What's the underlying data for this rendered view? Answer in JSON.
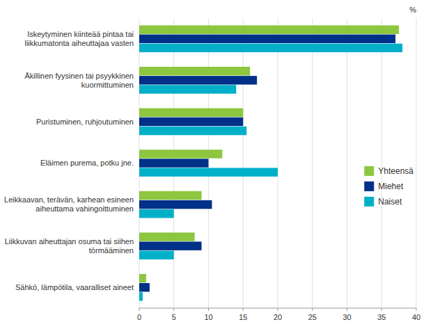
{
  "chart_data": {
    "type": "bar",
    "orientation": "horizontal",
    "categories": [
      "Iskeytyminen kiinteää pintaa tai\nliikkumatonta aiheuttajaa vasten",
      "Äkillinen fyysinen tai psyykkinen\nkuormittuminen",
      "Puristuminen, ruhjoutuminen",
      "Eläimen purema, potku jne.",
      "Leikkaavan, terävän, karhean esineen\naiheuttama vahingoittuminen",
      "Liikkuvan aiheuttajan osuma tai siihen\ntörmääminen",
      "Sähkö, lämpötila, vaaralliset aineet"
    ],
    "series": [
      {
        "name": "Yhteensä",
        "color": "#8DC63F",
        "values": [
          37.5,
          16.0,
          15.0,
          12.0,
          9.0,
          8.0,
          1.0
        ]
      },
      {
        "name": "Miehet",
        "color": "#003087",
        "values": [
          37.0,
          17.0,
          15.0,
          10.0,
          10.5,
          9.0,
          1.5
        ]
      },
      {
        "name": "Naiset",
        "color": "#00B0C8",
        "values": [
          38.0,
          14.0,
          15.5,
          20.0,
          5.0,
          5.0,
          0.5
        ]
      }
    ],
    "x_label": "%",
    "xlim": [
      0,
      40.0
    ],
    "xticks": [
      0,
      5,
      10,
      15,
      20,
      25,
      30,
      35,
      40
    ],
    "grid": true,
    "legend": "right"
  }
}
